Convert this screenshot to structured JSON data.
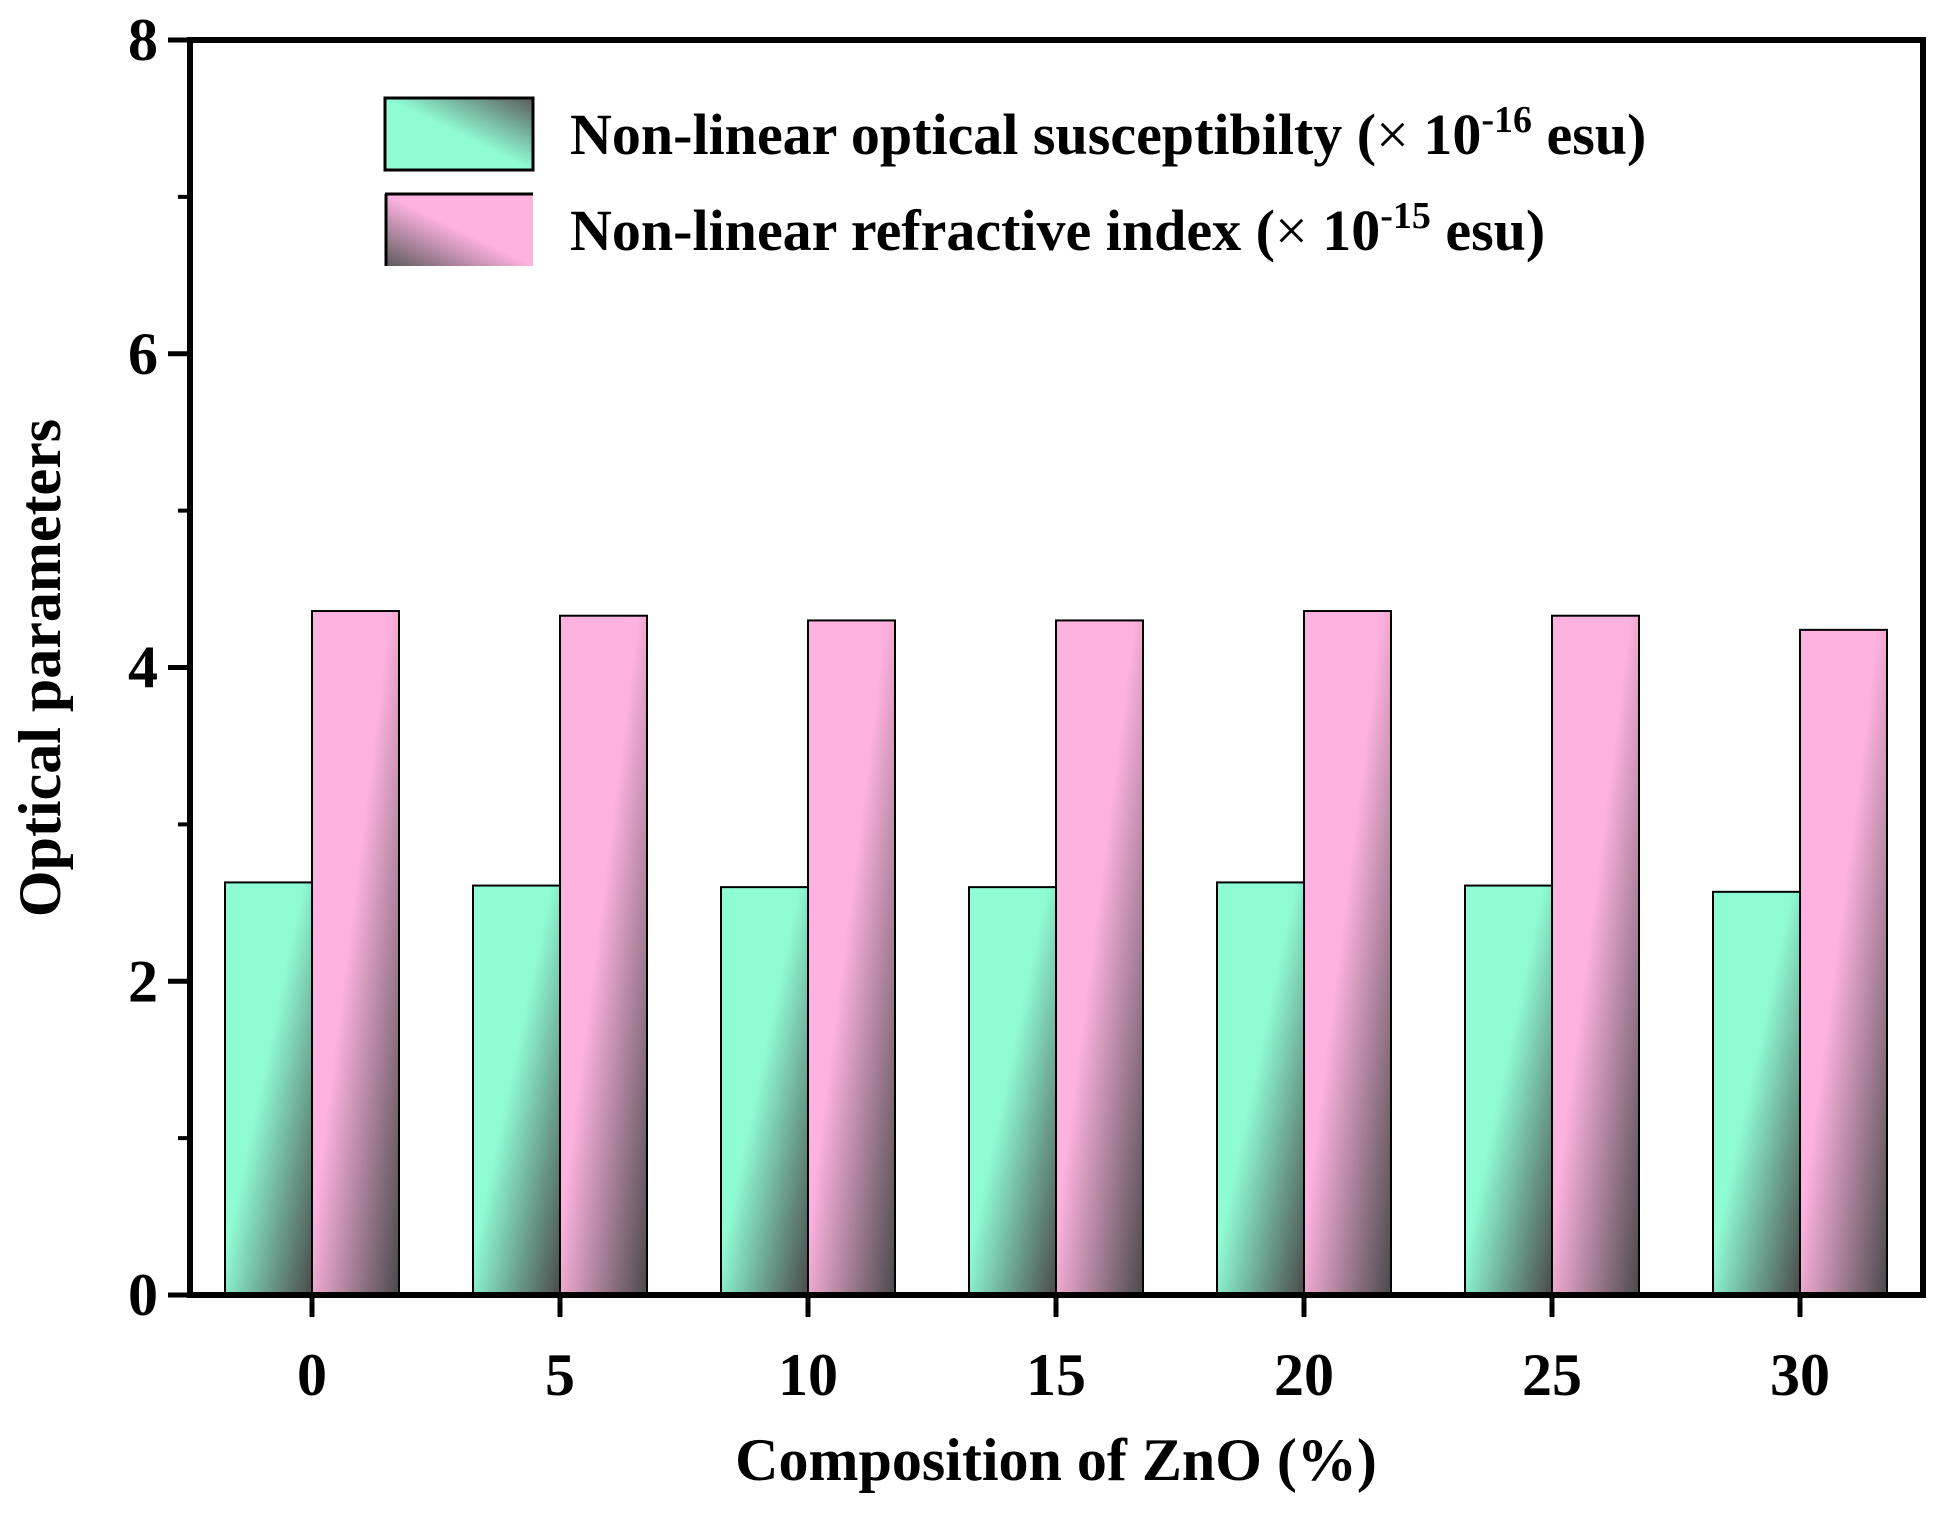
{
  "chart_data": {
    "type": "bar",
    "title": "",
    "xlabel": "Composition of ZnO (%)",
    "ylabel": "Optical parameters",
    "categories": [
      "0",
      "5",
      "10",
      "15",
      "20",
      "25",
      "30"
    ],
    "ylim": [
      0,
      8
    ],
    "yticks": [
      "0",
      "2",
      "4",
      "6",
      "8"
    ],
    "grid": false,
    "legend_position": "top-right",
    "series": [
      {
        "name": "Non-linear optical susceptibilty",
        "legend": {
          "prefix": "Non-linear optical susceptibilty (",
          "times": "×",
          "base": "10",
          "exponent": "-16",
          "suffix": " esu)"
        },
        "color": "#8ffcd6",
        "values": [
          2.63,
          2.61,
          2.6,
          2.6,
          2.63,
          2.61,
          2.57
        ]
      },
      {
        "name": "Non-linear refractive index",
        "legend": {
          "prefix": "Non-linear refractive index (",
          "times": "×",
          "base": "10",
          "exponent": "-15",
          "suffix": " esu)"
        },
        "color": "#feb2df",
        "values": [
          4.36,
          4.33,
          4.3,
          4.3,
          4.36,
          4.33,
          4.24
        ]
      }
    ]
  }
}
